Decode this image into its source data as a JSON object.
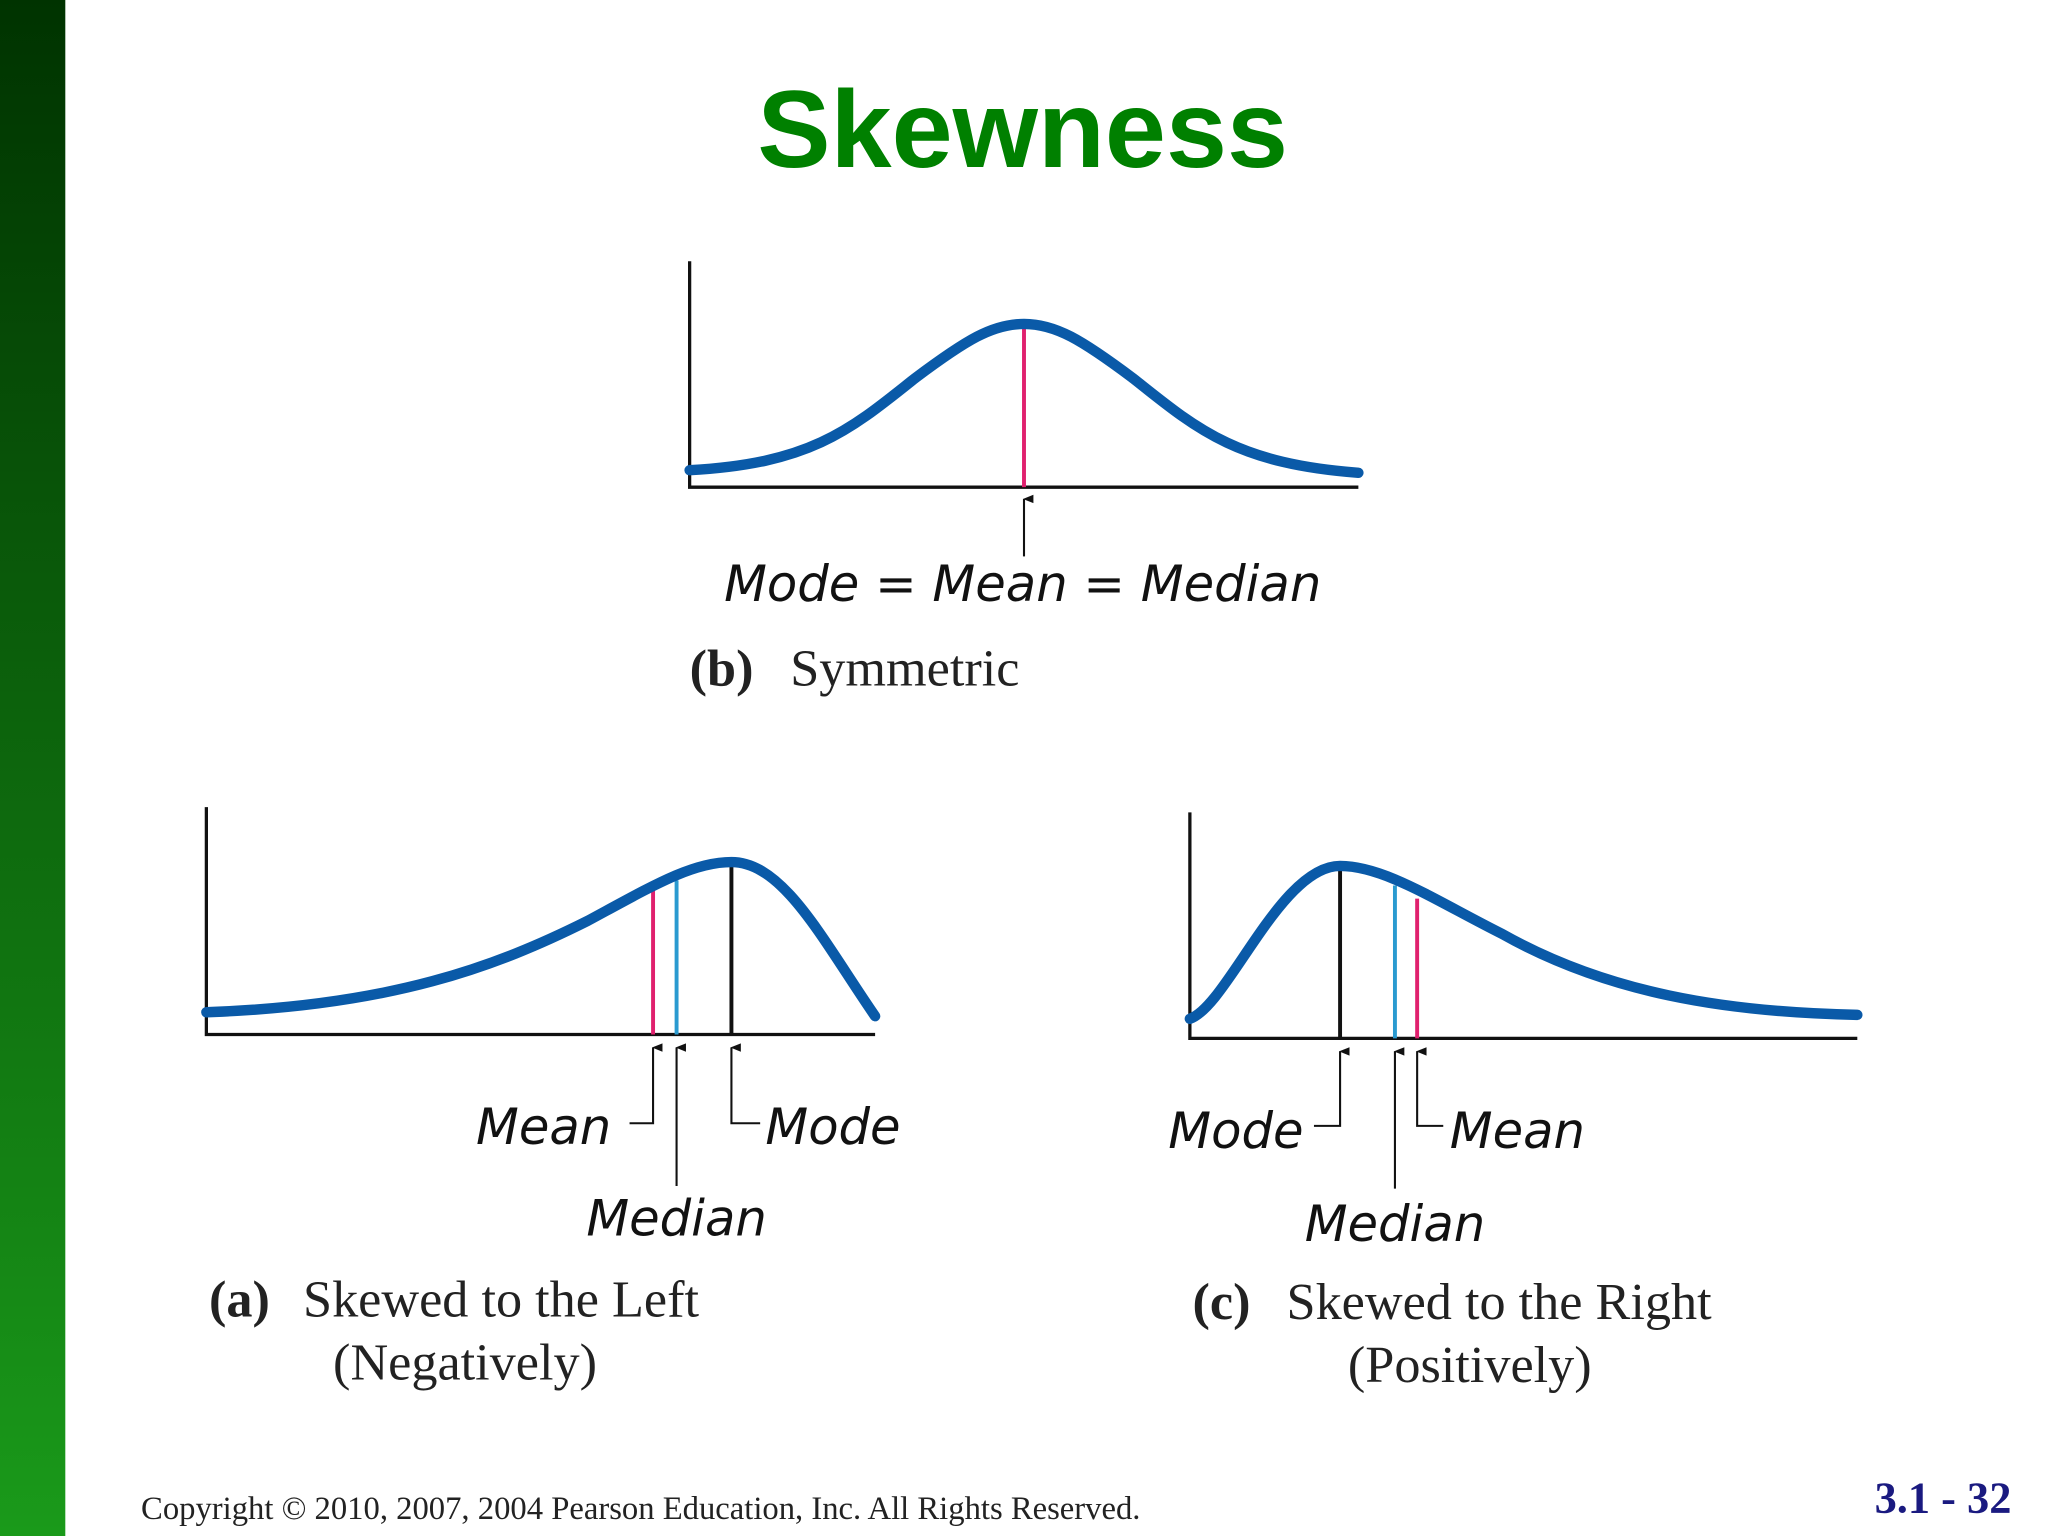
{
  "title": "Skewness",
  "panels": [
    {
      "letter": "(b)",
      "caption": [
        "Symmetric"
      ],
      "labels": [
        "Mode = Mean = Median"
      ]
    },
    {
      "letter": "(a)",
      "caption": [
        "Skewed to the Left",
        "(Negatively)"
      ],
      "labels": [
        "Mean",
        "Median",
        "Mode"
      ]
    },
    {
      "letter": "(c)",
      "caption": [
        "Skewed to the Right",
        "(Positively)"
      ],
      "labels": [
        "Mode",
        "Median",
        "Mean"
      ]
    }
  ],
  "footer": {
    "copyright": "Copyright © 2010, 2007, 2004 Pearson Education, Inc. All Rights Reserved.",
    "slide_number": "3.1 - 32"
  }
}
